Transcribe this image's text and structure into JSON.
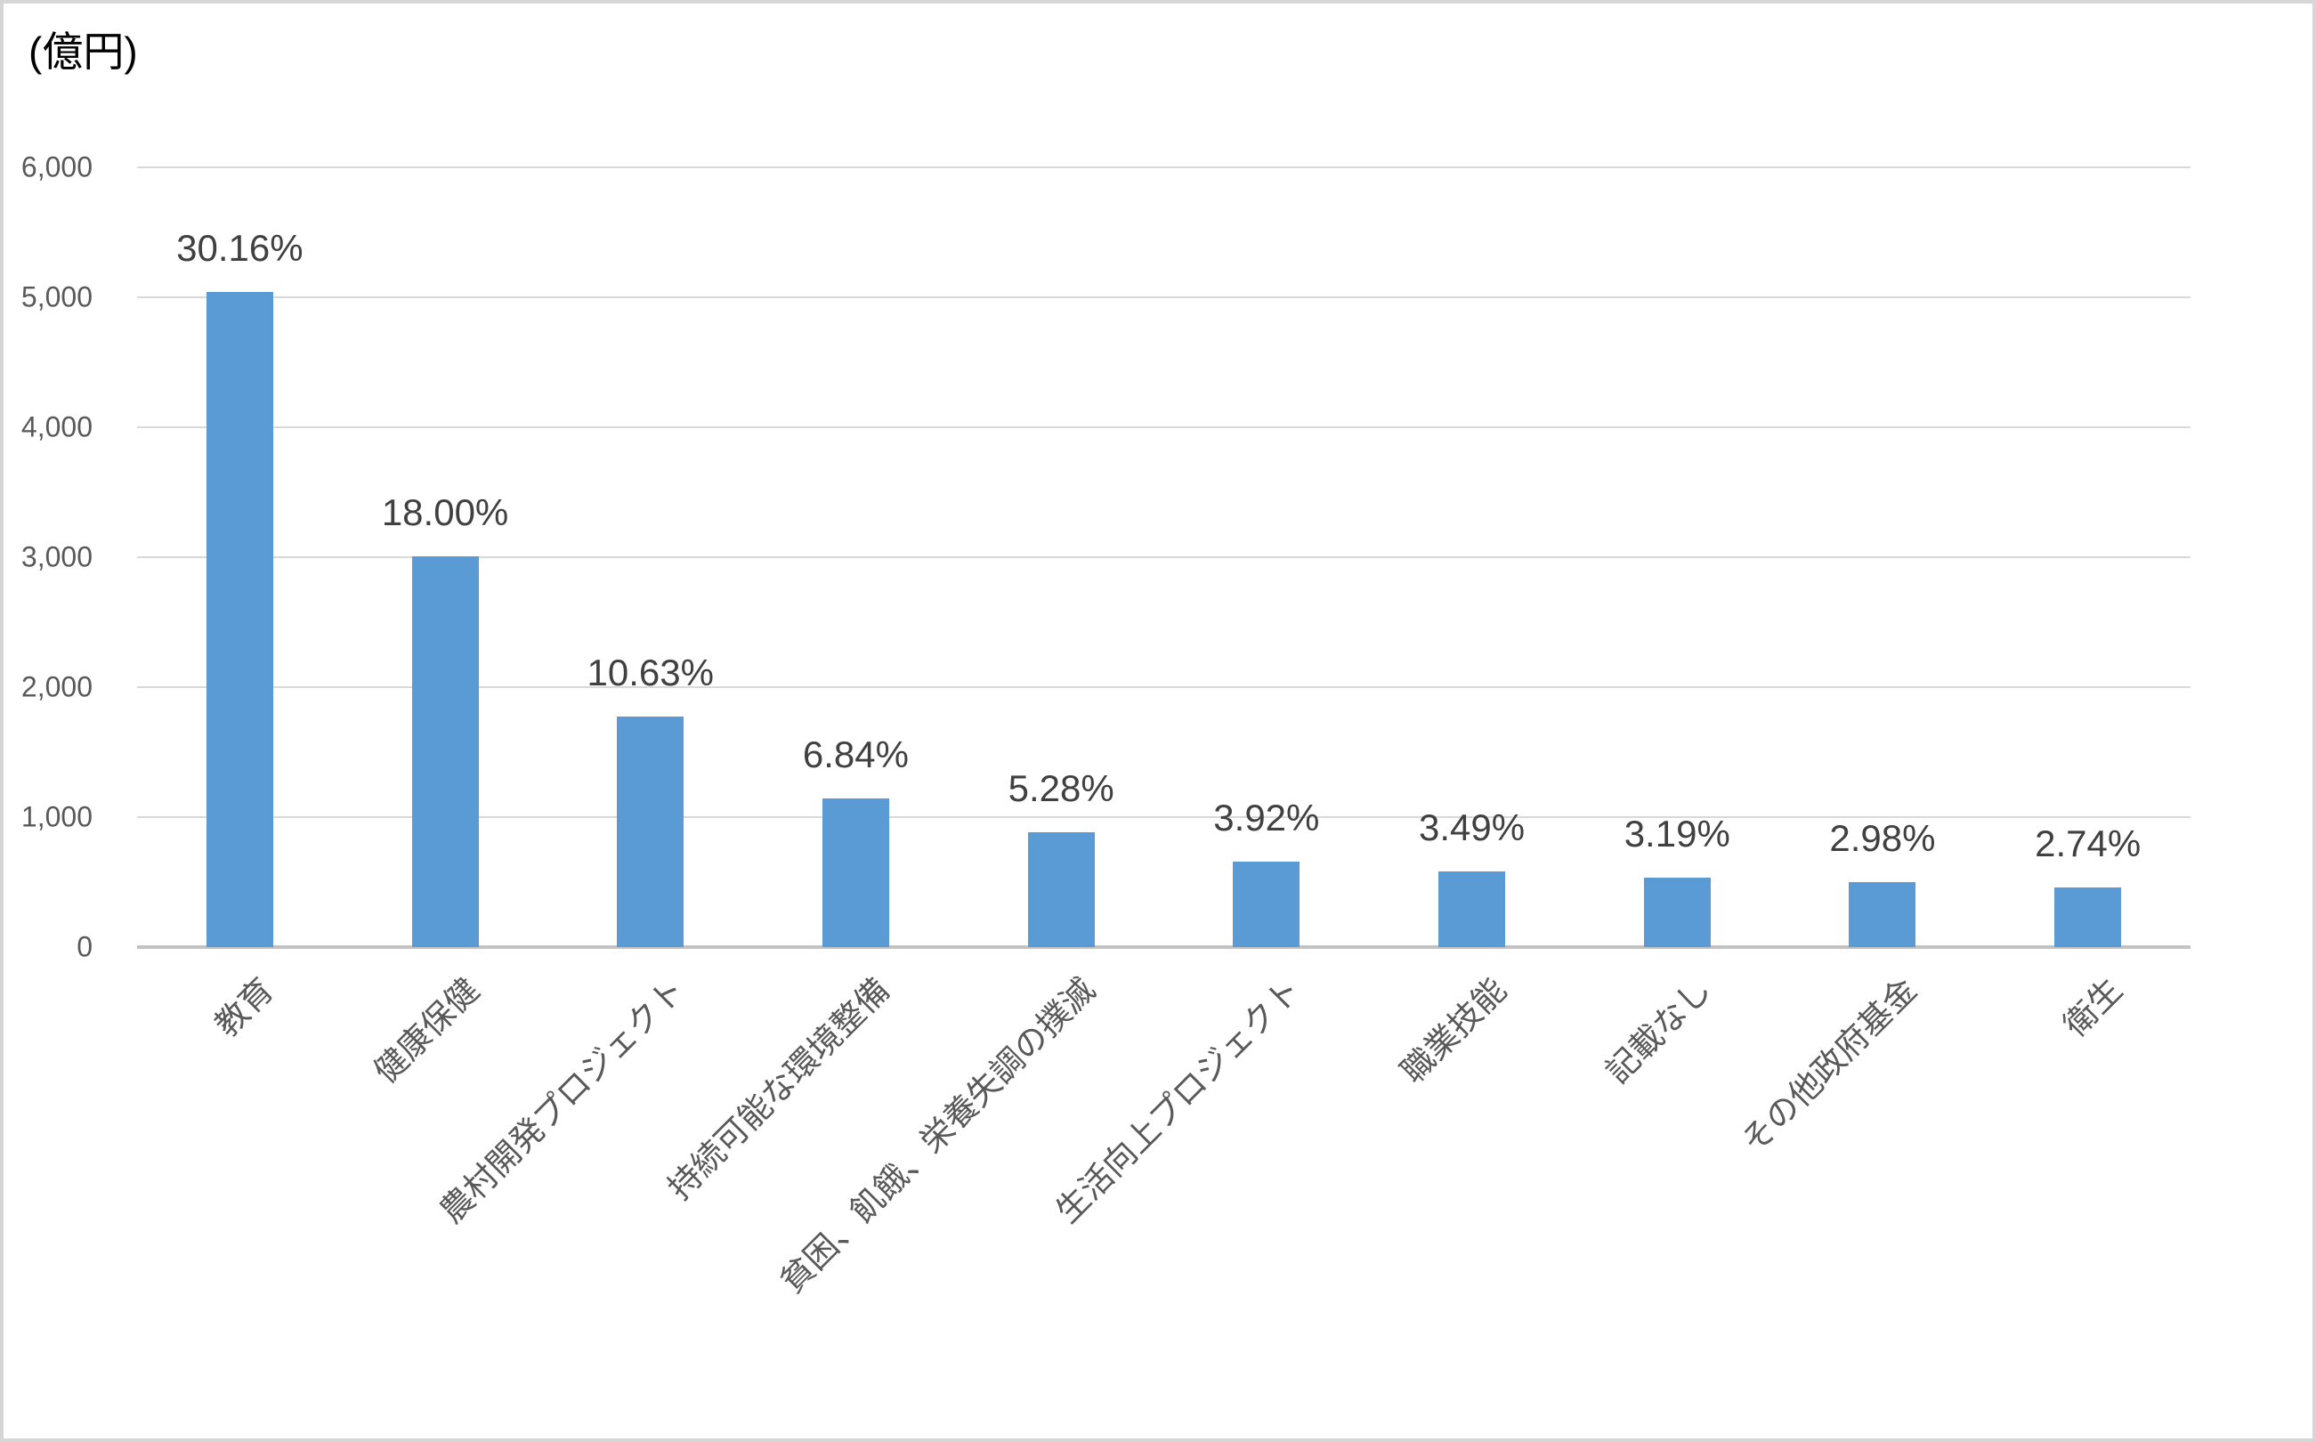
{
  "title": "(億円)",
  "colors": {
    "bar": "#5b9bd5",
    "grid": "#d9d9d9",
    "axis_line": "#c3c3c3",
    "tick_text": "#595959",
    "data_label_text": "#404040",
    "title_text": "#000000",
    "border": "#d6d6d6",
    "background": "#ffffff"
  },
  "chart_data": {
    "type": "bar",
    "title": "(億円)",
    "xlabel": "",
    "ylabel": "(億円)",
    "ylim": [
      0,
      6000
    ],
    "grid": true,
    "legend": false,
    "categories": [
      "教育",
      "健康保健",
      "農村開発プロジェクト",
      "持続可能な環境整備",
      "貧困、飢餓、栄養失調の撲滅",
      "生活向上プロジェクト",
      "職業技能",
      "記載なし",
      "その他政府基金",
      "衛生"
    ],
    "values": [
      5040,
      3008,
      1777,
      1143,
      883,
      655,
      583,
      533,
      498,
      458
    ],
    "values_note": "億円, estimated from axis gridlines",
    "data_labels": [
      "30.16%",
      "18.00%",
      "10.63%",
      "6.84%",
      "5.28%",
      "3.92%",
      "3.49%",
      "3.19%",
      "2.98%",
      "2.74%"
    ],
    "y_ticks": [
      {
        "value": 0,
        "label": "0"
      },
      {
        "value": 1000,
        "label": "1,000"
      },
      {
        "value": 2000,
        "label": "2,000"
      },
      {
        "value": 3000,
        "label": "3,000"
      },
      {
        "value": 4000,
        "label": "4,000"
      },
      {
        "value": 5000,
        "label": "5,000"
      },
      {
        "value": 6000,
        "label": "6,000"
      }
    ]
  }
}
